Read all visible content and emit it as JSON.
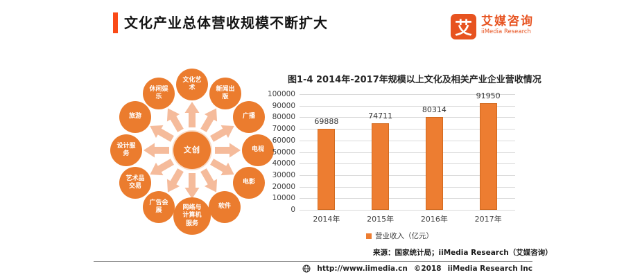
{
  "header": {
    "title": "文化产业总体营收规模不断扩大",
    "accent_color": "#FA4A17"
  },
  "logo": {
    "mark": "艾",
    "name_cn": "艾媒咨询",
    "name_en": "iiMedia Research",
    "color": "#E75320"
  },
  "diagram": {
    "center": "文创",
    "node_color": "#EB7C2E",
    "arrow_color": "#F5BB9B",
    "items": [
      "文化艺术",
      "新闻出版",
      "广播",
      "电视",
      "电影",
      "软件",
      "网络与计算机服务",
      "广告会展",
      "艺术品交易",
      "设计服务",
      "旅游",
      "休闲娱乐"
    ]
  },
  "chart_data": {
    "type": "bar",
    "title": "图1-4 2014年-2017年规模以上文化及相关产业企业营收情况",
    "categories": [
      "2014年",
      "2015年",
      "2016年",
      "2017年"
    ],
    "values": [
      69888,
      74711,
      80314,
      91950
    ],
    "ylim": [
      0,
      100000
    ],
    "ytick_step": 10000,
    "xlabel": "",
    "ylabel": "",
    "grid": true,
    "legend": [
      "营业收入（亿元）"
    ],
    "legend_position": "bottom",
    "bar_color": "#ED7D31",
    "source": "来源：国家统计局；iiMedia Research（艾媒咨询）"
  },
  "footer": {
    "url": "http://www.iimedia.cn",
    "copyright": "©2018",
    "company": "iiMedia Research Inc"
  }
}
